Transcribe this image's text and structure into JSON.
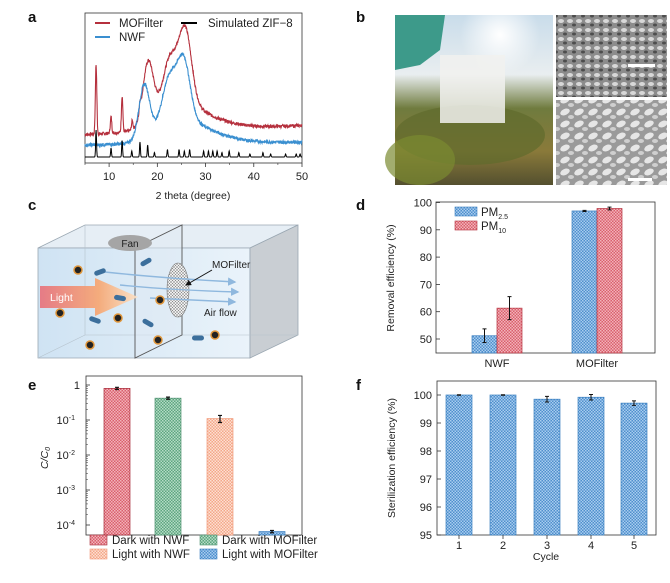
{
  "panel_labels": {
    "a": "a",
    "b": "b",
    "c": "c",
    "d": "d",
    "e": "e",
    "f": "f"
  },
  "colors": {
    "red": "#b5303d",
    "blue": "#3a8fd0",
    "black": "#000000",
    "bar_red": "#d9606d",
    "bar_blue": "#5b9bd5",
    "bar_green": "#6fb28f",
    "bar_peach": "#f7b79c"
  },
  "panel_c": {
    "fan_label": "Fan",
    "filter_label": "MOFilter",
    "light_label": "Light",
    "airflow_label": "Air flow"
  },
  "chart_data": [
    {
      "panel": "a",
      "type": "line",
      "xlabel": "2 theta (degree)",
      "ylabel": "",
      "xlim": [
        5,
        50
      ],
      "xticks": [
        "10",
        "20",
        "30",
        "40",
        "50"
      ],
      "grid": false,
      "legend_placement": "top",
      "series": [
        {
          "name": "MOFilter",
          "color": "#b5303d",
          "baseline": [
            19,
            25
          ],
          "broad_peaks": [
            [
              18.1,
              1.1,
              41
            ],
            [
              22.6,
              1.5,
              32
            ],
            [
              25.8,
              1.3,
              48
            ],
            [
              24,
              4,
              12
            ],
            [
              28,
              6,
              8
            ]
          ],
          "sharp_peaks": [
            [
              7.3,
              46
            ],
            [
              10.4,
              11
            ],
            [
              12.7,
              24
            ],
            [
              14.8,
              6
            ],
            [
              16.4,
              6
            ]
          ]
        },
        {
          "name": "NWF",
          "color": "#3a8fd0",
          "baseline": [
            12,
            14
          ],
          "broad_peaks": [
            [
              17.3,
              1.1,
              36
            ],
            [
              22.5,
              1.5,
              30
            ],
            [
              25.5,
              1.3,
              38
            ],
            [
              24,
              4,
              10
            ],
            [
              28,
              6,
              8
            ]
          ],
          "sharp_peaks": []
        },
        {
          "name": "Simulated ZIF−8",
          "color": "#000000",
          "baseline": [
            4,
            4
          ],
          "broad_peaks": [],
          "sharp_peaks": [
            [
              7.3,
              18
            ],
            [
              10.4,
              6
            ],
            [
              12.7,
              11
            ],
            [
              14.7,
              4
            ],
            [
              16.4,
              10
            ],
            [
              18.0,
              8
            ],
            [
              19.4,
              3
            ],
            [
              22.1,
              5
            ],
            [
              24.5,
              5
            ],
            [
              25.6,
              4
            ],
            [
              26.7,
              5
            ],
            [
              29.6,
              4
            ],
            [
              30.6,
              4
            ],
            [
              31.5,
              4
            ],
            [
              32.4,
              4
            ],
            [
              33.4,
              3
            ],
            [
              34.9,
              4
            ],
            [
              36.9,
              3
            ],
            [
              39.2,
              2
            ],
            [
              41.9,
              3
            ],
            [
              43.5,
              2
            ],
            [
              46.6,
              2
            ],
            [
              48.8,
              2
            ],
            [
              49.6,
              2
            ]
          ]
        }
      ]
    },
    {
      "panel": "d",
      "type": "bar",
      "ylabel": "Removal efficiency (%)",
      "ylim": [
        45,
        100
      ],
      "yticks": [
        "50",
        "60",
        "70",
        "80",
        "90",
        "100"
      ],
      "categories": [
        "NWF",
        "MOFilter"
      ],
      "legend_placement": "top-left",
      "series": [
        {
          "name": "PM",
          "sub": "2.5",
          "color": "#5b9bd5",
          "values": [
            51.2,
            96.9
          ],
          "errors": [
            2.5,
            0.2
          ]
        },
        {
          "name": "PM",
          "sub": "10",
          "color": "#d9606d",
          "values": [
            61.3,
            97.8
          ],
          "errors": [
            4.2,
            0.5
          ]
        }
      ]
    },
    {
      "panel": "e",
      "type": "bar",
      "ylabel": "C/C",
      "ylabel_sub": "0",
      "yscale": "log",
      "ylim": [
        5e-05,
        1.5
      ],
      "yticks": [
        {
          "base": "1",
          "exp": ""
        },
        {
          "base": "10",
          "exp": "-1"
        },
        {
          "base": "10",
          "exp": "-2"
        },
        {
          "base": "10",
          "exp": "-3"
        },
        {
          "base": "10",
          "exp": "-4"
        }
      ],
      "legend_placement": "bottom",
      "categories": [
        "Dark with NWF",
        "Dark with MOFilter",
        "Light with NWF",
        "Light with MOFilter"
      ],
      "values": [
        0.8,
        0.42,
        0.11,
        6.5e-05
      ],
      "errors": [
        0.06,
        0.03,
        0.025,
        5e-06
      ],
      "bar_colors": [
        "#d9606d",
        "#6fb28f",
        "#f7b79c",
        "#5b9bd5"
      ]
    },
    {
      "panel": "f",
      "type": "bar",
      "xlabel": "Cycle",
      "ylabel": "Sterilization efficiency (%)",
      "ylim": [
        95,
        100.5
      ],
      "yticks": [
        "95",
        "96",
        "97",
        "98",
        "99",
        "100"
      ],
      "categories": [
        "1",
        "2",
        "3",
        "4",
        "5"
      ],
      "values": [
        100.0,
        100.0,
        99.85,
        99.92,
        99.71
      ],
      "errors": [
        0.01,
        0.01,
        0.1,
        0.1,
        0.08
      ],
      "color": "#5b9bd5"
    }
  ]
}
